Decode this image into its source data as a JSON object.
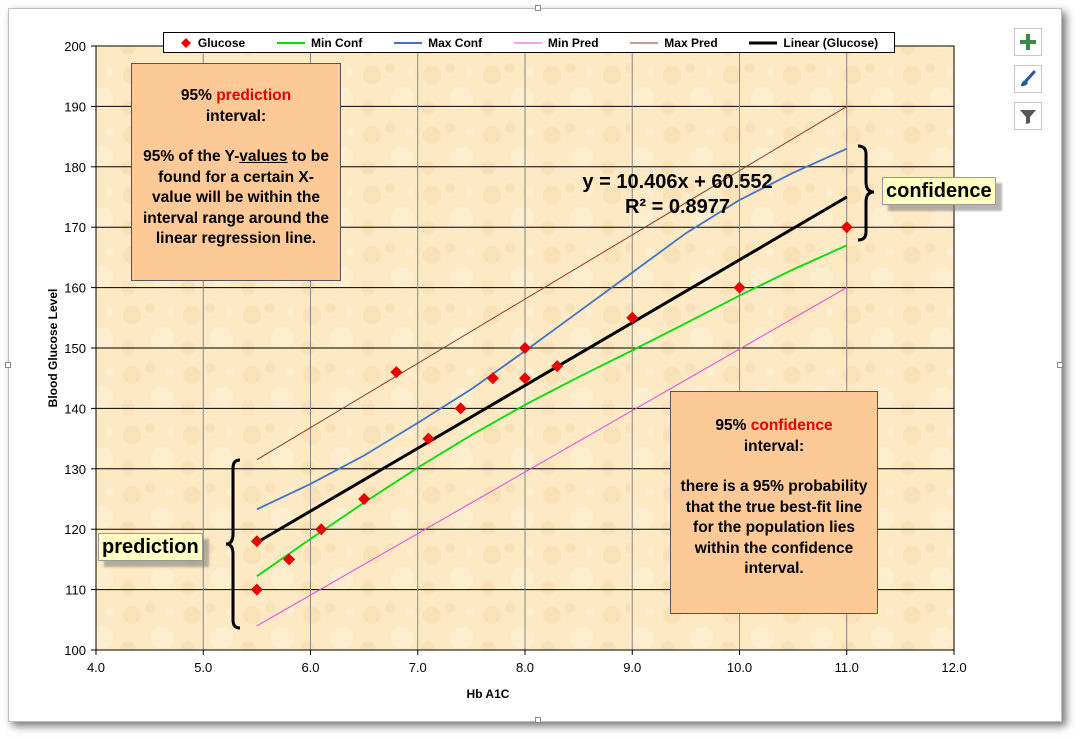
{
  "chart_data": {
    "type": "scatter",
    "title": "",
    "xlabel": "Hb A1C",
    "ylabel": "Blood Glucose Level",
    "xlim": [
      4.0,
      12.0
    ],
    "ylim": [
      100,
      200
    ],
    "x_ticks": [
      "4.0",
      "5.0",
      "6.0",
      "7.0",
      "8.0",
      "9.0",
      "10.0",
      "11.0",
      "12.0"
    ],
    "y_ticks": [
      "100",
      "110",
      "120",
      "130",
      "140",
      "150",
      "160",
      "170",
      "180",
      "190",
      "200"
    ],
    "grid": true,
    "legend_position": "top",
    "series": [
      {
        "name": "Glucose",
        "kind": "points",
        "color": "#e60000",
        "x": [
          5.5,
          5.5,
          5.8,
          6.1,
          6.5,
          6.8,
          7.1,
          7.4,
          7.7,
          8.0,
          8.0,
          8.3,
          9.0,
          10.0,
          11.0
        ],
        "y": [
          110,
          118,
          115,
          120,
          125,
          146,
          135,
          140,
          145,
          145,
          150,
          147,
          155,
          160,
          170
        ]
      },
      {
        "name": "Min Conf",
        "kind": "line",
        "color": "#00dd00",
        "x": [
          5.5,
          6.0,
          6.5,
          7.0,
          7.5,
          8.0,
          8.5,
          9.0,
          9.5,
          10.0,
          10.5,
          11.0
        ],
        "y": [
          112.2,
          118.4,
          124.4,
          130.2,
          135.6,
          140.6,
          145.2,
          149.6,
          154.1,
          158.7,
          163.0,
          167.0
        ]
      },
      {
        "name": "Max Conf",
        "kind": "line",
        "color": "#4472c4",
        "x": [
          5.5,
          6.0,
          6.5,
          7.0,
          7.5,
          8.0,
          8.5,
          9.0,
          9.5,
          10.0,
          10.5,
          11.0
        ],
        "y": [
          123.3,
          127.5,
          132.2,
          137.6,
          143.2,
          149.5,
          156.0,
          162.5,
          169.0,
          174.5,
          179.0,
          183.0
        ]
      },
      {
        "name": "Min Pred",
        "kind": "line",
        "color": "#dd44dd",
        "x": [
          5.5,
          11.0
        ],
        "y": [
          104.0,
          160.0
        ]
      },
      {
        "name": "Max Pred",
        "kind": "line",
        "color": "#8b3a2a",
        "x": [
          5.5,
          11.0
        ],
        "y": [
          131.5,
          190.0
        ]
      },
      {
        "name": "Linear (Glucose)",
        "kind": "trend",
        "color": "#000000",
        "x": [
          5.5,
          11.0
        ],
        "y": [
          117.8,
          175.0
        ]
      }
    ],
    "trendline": {
      "equation": "y = 10.406x + 60.552",
      "r_squared": "R² = 0.8977"
    }
  },
  "notes": {
    "prediction": {
      "lead": "95%",
      "highlight": "prediction",
      "line2": "interval:",
      "body_pre": "95% of the Y-",
      "body_underlined": "values",
      "body_post": " to be found for a certain X-value will be within the interval range around the linear regression line."
    },
    "confidence": {
      "lead": "95%",
      "highlight": "confidence",
      "line2": "interval:",
      "body": "there is a 95% probability that the true best-fit line for the population lies within the confidence interval."
    }
  },
  "callouts": {
    "confidence": "confidence",
    "prediction": "prediction"
  },
  "toolbar": {
    "add_icon": "plus-icon",
    "style_icon": "paintbrush-icon",
    "filter_icon": "filter-icon"
  },
  "colors": {
    "plot_bg": "#fde9c4",
    "note_bg": "#fcc997",
    "callout_bg": "#ffffc2",
    "highlight": "#e60000"
  }
}
